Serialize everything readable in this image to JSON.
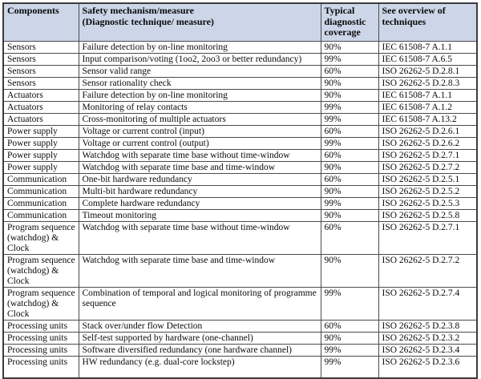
{
  "colors": {
    "header_bg": "#ccd6e8",
    "border_outer": "#3c3c3c",
    "border_inner": "#4b4b4b"
  },
  "table": {
    "headers": [
      {
        "label": "Components"
      },
      {
        "label": "Safety mechanism/measure\n(Diagnostic technique/ measure)"
      },
      {
        "label": "Typical\ndiagnostic\ncoverage"
      },
      {
        "label": "See overview of\ntechniques"
      }
    ],
    "rows": [
      {
        "component": "Sensors",
        "measure": "Failure detection by on-line monitoring",
        "coverage": "90%",
        "reference": "IEC 61508-7 A.1.1"
      },
      {
        "component": "Sensors",
        "measure": "Input comparison/voting (1oo2, 2oo3 or better redundancy)",
        "coverage": "99%",
        "reference": "IEC 61508-7 A.6.5"
      },
      {
        "component": "Sensors",
        "measure": "Sensor valid range",
        "coverage": "60%",
        "reference": "ISO 26262-5 D.2.8.1"
      },
      {
        "component": "Sensors",
        "measure": "Sensor rationality check",
        "coverage": "90%",
        "reference": "ISO 26262-5 D.2.8.3"
      },
      {
        "component": "Actuators",
        "measure": "Failure detection by on-line monitoring",
        "coverage": "90%",
        "reference": "IEC 61508-7 A.1.1"
      },
      {
        "component": "Actuators",
        "measure": "Monitoring of relay contacts",
        "coverage": "99%",
        "reference": "IEC 61508-7 A.1.2"
      },
      {
        "component": "Actuators",
        "measure": "Cross-monitoring of multiple actuators",
        "coverage": "99%",
        "reference": "IEC 61508-7 A.13.2"
      },
      {
        "component": "Power supply",
        "measure": "Voltage or current control (input)",
        "coverage": "60%",
        "reference": "ISO 26262-5 D.2.6.1"
      },
      {
        "component": "Power supply",
        "measure": "Voltage or current control (output)",
        "coverage": "99%",
        "reference": "ISO 26262-5 D.2.6.2"
      },
      {
        "component": "Power supply",
        "measure": "Watchdog with separate time base without time-window",
        "coverage": "60%",
        "reference": "ISO 26262-5 D.2.7.1"
      },
      {
        "component": "Power supply",
        "measure": "Watchdog with separate time base and time-window",
        "coverage": "90%",
        "reference": "ISO 26262-5 D.2.7.2"
      },
      {
        "component": "Communication",
        "measure": "One-bit hardware redundancy",
        "coverage": "60%",
        "reference": "ISO 26262-5 D.2.5.1"
      },
      {
        "component": "Communication",
        "measure": "Multi-bit hardware redundancy",
        "coverage": "90%",
        "reference": "ISO 26262-5 D.2.5.2"
      },
      {
        "component": "Communication",
        "measure": "Complete hardware redundancy",
        "coverage": "99%",
        "reference": "ISO 26262-5 D.2.5.3"
      },
      {
        "component": "Communication",
        "measure": "Timeout monitoring",
        "coverage": "90%",
        "reference": "ISO 26262-5 D.2.5.8"
      },
      {
        "component": "Program sequence (watchdog) & Clock",
        "measure": "Watchdog with separate time base without time-window",
        "coverage": "60%",
        "reference": "ISO 26262-5 D.2.7.1"
      },
      {
        "component": "Program sequence (watchdog) & Clock",
        "measure": "Watchdog with separate time base and time-window",
        "coverage": "90%",
        "reference": "ISO 26262-5 D.2.7.2"
      },
      {
        "component": "Program sequence (watchdog) & Clock",
        "measure": "Combination of temporal and logical monitoring of programme sequence",
        "coverage": "99%",
        "reference": "ISO 26262-5 D.2.7.4"
      },
      {
        "component": "Processing units",
        "measure": "Stack over/under flow Detection",
        "coverage": "60%",
        "reference": "ISO 26262-5 D.2.3.8"
      },
      {
        "component": "Processing units",
        "measure": "Self-test supported by hardware (one-channel)",
        "coverage": "90%",
        "reference": "ISO 26262-5 D.2.3.2"
      },
      {
        "component": "Processing units",
        "measure": "Software diversified redundancy (one hardware channel)",
        "coverage": "99%",
        "reference": "ISO 26262-5 D.2.3.4"
      },
      {
        "component": "Processing units",
        "measure": "HW redundancy (e.g. dual-core lockstep)",
        "coverage": "99%",
        "reference": "ISO 26262-5 D.2.3.6"
      }
    ]
  }
}
